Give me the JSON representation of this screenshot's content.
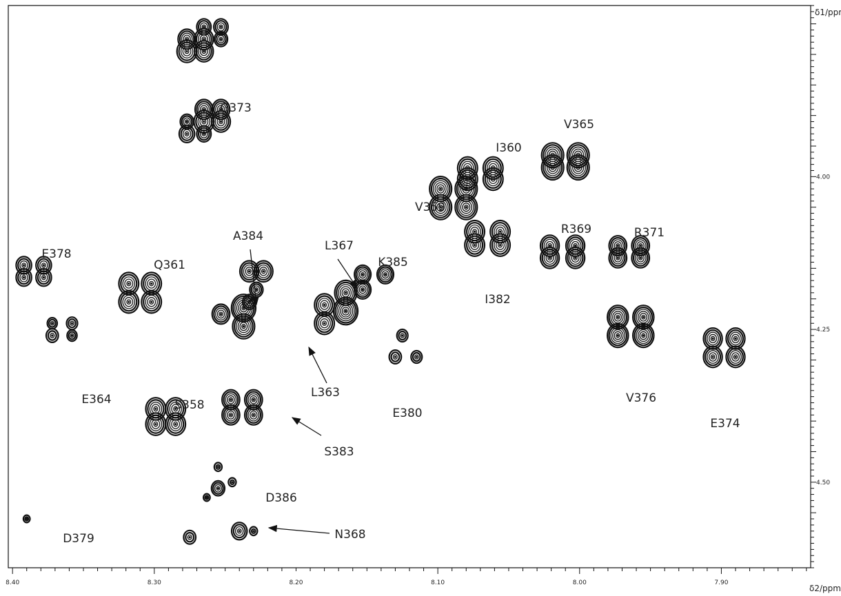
{
  "chart_data": {
    "type": "2D NMR contour spectrum",
    "x_axis": {
      "unit_label": "δ2/ppm",
      "tick_labels": [
        "8.40",
        "8.30",
        "8.20",
        "8.10",
        "8.00",
        "7.90"
      ],
      "tick_values": [
        8.4,
        8.3,
        8.2,
        8.1,
        8.0,
        7.9
      ],
      "range": [
        8.403,
        7.837
      ],
      "reversed": true
    },
    "y_axis": {
      "unit_label": "δ1/ppm",
      "tick_labels": [
        "4.00",
        "4.25",
        "4.50"
      ],
      "tick_values": [
        4.0,
        4.25,
        4.5
      ],
      "range": [
        3.72,
        4.64
      ],
      "position": "right",
      "reversed": true
    },
    "peaks": [
      {
        "label": "G373",
        "x": 8.265,
        "y": 3.905,
        "components": [
          {
            "dx": -0.012,
            "dy": -0.015,
            "s": 0.8
          },
          {
            "dx": 0.0,
            "dy": -0.015,
            "s": 0.8
          },
          {
            "dx": -0.012,
            "dy": 0.005,
            "s": 0.85
          },
          {
            "dx": 0.0,
            "dy": 0.005,
            "s": 0.9
          },
          {
            "dx": 0.012,
            "dy": 0.005,
            "s": 0.6
          },
          {
            "dx": 0.0,
            "dy": 0.025,
            "s": 0.65
          },
          {
            "dx": 0.012,
            "dy": 0.025,
            "s": 0.7
          }
        ]
      },
      {
        "label": "",
        "x": 8.265,
        "y": 3.78,
        "components": [
          {
            "dx": -0.012,
            "dy": -0.025,
            "s": 0.65
          },
          {
            "dx": 0.0,
            "dy": -0.025,
            "s": 0.65
          },
          {
            "dx": -0.012,
            "dy": -0.005,
            "s": 0.6
          },
          {
            "dx": 0.0,
            "dy": -0.005,
            "s": 0.85
          },
          {
            "dx": 0.012,
            "dy": -0.005,
            "s": 0.8
          },
          {
            "dx": 0.0,
            "dy": 0.015,
            "s": 0.85
          },
          {
            "dx": 0.012,
            "dy": 0.015,
            "s": 0.9
          }
        ]
      },
      {
        "label": "V365",
        "x": 8.01,
        "y": 3.975,
        "components": [
          {
            "dx": -0.009,
            "dy": -0.01,
            "s": 1.0
          },
          {
            "dx": 0.009,
            "dy": -0.01,
            "s": 1.0
          },
          {
            "dx": -0.009,
            "dy": 0.01,
            "s": 1.0
          },
          {
            "dx": 0.009,
            "dy": 0.01,
            "s": 1.0
          }
        ]
      },
      {
        "label": "I360",
        "x": 8.07,
        "y": 3.99,
        "components": [
          {
            "dx": -0.009,
            "dy": -0.004,
            "s": 0.9
          },
          {
            "dx": 0.009,
            "dy": -0.004,
            "s": 0.9
          },
          {
            "dx": -0.009,
            "dy": 0.014,
            "s": 0.9
          },
          {
            "dx": 0.009,
            "dy": 0.014,
            "s": 0.9
          }
        ]
      },
      {
        "label": "V359",
        "x": 8.09,
        "y": 4.05,
        "components": [
          {
            "dx": -0.01,
            "dy": -0.03,
            "s": 1.0
          },
          {
            "dx": 0.008,
            "dy": -0.03,
            "s": 1.0
          },
          {
            "dx": -0.01,
            "dy": 0.0,
            "s": 1.0
          },
          {
            "dx": 0.008,
            "dy": 0.0,
            "s": 1.0
          }
        ]
      },
      {
        "label": "I382",
        "x": 8.065,
        "y": 4.11,
        "components": [
          {
            "dx": -0.009,
            "dy": -0.02,
            "s": 0.9
          },
          {
            "dx": 0.009,
            "dy": -0.02,
            "s": 0.9
          },
          {
            "dx": -0.009,
            "dy": 0.002,
            "s": 0.9
          },
          {
            "dx": 0.009,
            "dy": 0.002,
            "s": 0.9
          }
        ]
      },
      {
        "label": "R369",
        "x": 8.012,
        "y": 4.133,
        "components": [
          {
            "dx": -0.009,
            "dy": -0.02,
            "s": 0.85
          },
          {
            "dx": 0.009,
            "dy": -0.02,
            "s": 0.85
          },
          {
            "dx": -0.009,
            "dy": 0.0,
            "s": 0.85
          },
          {
            "dx": 0.009,
            "dy": 0.0,
            "s": 0.85
          }
        ]
      },
      {
        "label": "R371",
        "x": 7.965,
        "y": 4.133,
        "components": [
          {
            "dx": -0.008,
            "dy": -0.02,
            "s": 0.8
          },
          {
            "dx": 0.008,
            "dy": -0.02,
            "s": 0.8
          },
          {
            "dx": -0.008,
            "dy": 0.0,
            "s": 0.8
          },
          {
            "dx": 0.008,
            "dy": 0.0,
            "s": 0.8
          }
        ]
      },
      {
        "label": "V376",
        "x": 7.964,
        "y": 4.25,
        "components": [
          {
            "dx": -0.009,
            "dy": -0.02,
            "s": 0.95
          },
          {
            "dx": 0.009,
            "dy": -0.02,
            "s": 0.95
          },
          {
            "dx": -0.009,
            "dy": 0.01,
            "s": 0.95
          },
          {
            "dx": 0.009,
            "dy": 0.01,
            "s": 0.95
          }
        ]
      },
      {
        "label": "E374",
        "x": 7.898,
        "y": 4.285,
        "components": [
          {
            "dx": -0.008,
            "dy": -0.02,
            "s": 0.85
          },
          {
            "dx": 0.008,
            "dy": -0.02,
            "s": 0.85
          },
          {
            "dx": -0.008,
            "dy": 0.01,
            "s": 0.85
          },
          {
            "dx": 0.008,
            "dy": 0.01,
            "s": 0.85
          }
        ]
      },
      {
        "label": "E378",
        "x": 8.385,
        "y": 4.165,
        "components": [
          {
            "dx": -0.007,
            "dy": -0.02,
            "s": 0.7
          },
          {
            "dx": 0.007,
            "dy": -0.02,
            "s": 0.7
          },
          {
            "dx": -0.007,
            "dy": 0.0,
            "s": 0.7
          },
          {
            "dx": 0.007,
            "dy": 0.0,
            "s": 0.7
          }
        ]
      },
      {
        "label": "E364",
        "x": 8.365,
        "y": 4.25,
        "components": [
          {
            "dx": -0.007,
            "dy": -0.01,
            "s": 0.5
          },
          {
            "dx": 0.007,
            "dy": -0.01,
            "s": 0.45
          },
          {
            "dx": -0.007,
            "dy": 0.01,
            "s": 0.45
          },
          {
            "dx": 0.007,
            "dy": 0.01,
            "s": 0.55
          }
        ]
      },
      {
        "label": "Q361",
        "x": 8.31,
        "y": 4.195,
        "components": [
          {
            "dx": -0.008,
            "dy": -0.02,
            "s": 0.9
          },
          {
            "dx": 0.008,
            "dy": -0.02,
            "s": 0.9
          },
          {
            "dx": -0.008,
            "dy": 0.01,
            "s": 0.9
          },
          {
            "dx": 0.008,
            "dy": 0.01,
            "s": 0.9
          }
        ]
      },
      {
        "label": "A384",
        "x": 8.245,
        "y": 4.225,
        "components": [
          {
            "dx": -0.008,
            "dy": -0.01,
            "s": 1.1
          },
          {
            "dx": -0.008,
            "dy": 0.02,
            "s": 1.0
          },
          {
            "dx": 0.008,
            "dy": 0.0,
            "s": 0.8
          }
        ]
      },
      {
        "label": "L363",
        "x": 8.228,
        "y": 4.205,
        "components": [
          {
            "dx": -0.005,
            "dy": -0.05,
            "s": 0.85
          },
          {
            "dx": 0.005,
            "dy": -0.05,
            "s": 0.85
          },
          {
            "dx": 0.0,
            "dy": -0.02,
            "s": 0.6
          },
          {
            "dx": 0.005,
            "dy": 0.0,
            "s": 0.6
          }
        ]
      },
      {
        "label": "L367",
        "x": 8.17,
        "y": 4.22,
        "components": [
          {
            "dx": -0.005,
            "dy": -0.03,
            "s": 1.0
          },
          {
            "dx": -0.005,
            "dy": 0.0,
            "s": 1.1
          },
          {
            "dx": 0.01,
            "dy": -0.01,
            "s": 0.9
          },
          {
            "dx": 0.01,
            "dy": 0.02,
            "s": 0.9
          }
        ]
      },
      {
        "label": "K385",
        "x": 8.145,
        "y": 4.17,
        "components": [
          {
            "dx": -0.008,
            "dy": -0.01,
            "s": 0.75
          },
          {
            "dx": 0.008,
            "dy": -0.01,
            "s": 0.75
          },
          {
            "dx": 0.008,
            "dy": 0.015,
            "s": 0.75
          }
        ]
      },
      {
        "label": "E380",
        "x": 8.13,
        "y": 4.28,
        "components": [
          {
            "dx": -0.005,
            "dy": -0.02,
            "s": 0.5
          },
          {
            "dx": -0.015,
            "dy": 0.015,
            "s": 0.5
          },
          {
            "dx": 0.0,
            "dy": 0.015,
            "s": 0.55
          }
        ]
      },
      {
        "label": "S358",
        "x": 8.292,
        "y": 4.4,
        "components": [
          {
            "dx": -0.007,
            "dy": -0.02,
            "s": 0.9
          },
          {
            "dx": 0.007,
            "dy": -0.02,
            "s": 0.9
          },
          {
            "dx": -0.007,
            "dy": 0.005,
            "s": 0.9
          },
          {
            "dx": 0.007,
            "dy": 0.005,
            "s": 0.9
          }
        ]
      },
      {
        "label": "S383",
        "x": 8.238,
        "y": 4.375,
        "components": [
          {
            "dx": -0.008,
            "dy": -0.01,
            "s": 0.8
          },
          {
            "dx": 0.008,
            "dy": -0.01,
            "s": 0.8
          },
          {
            "dx": -0.008,
            "dy": 0.015,
            "s": 0.8
          },
          {
            "dx": 0.008,
            "dy": 0.015,
            "s": 0.8
          }
        ]
      },
      {
        "label": "D386",
        "x": 8.255,
        "y": 4.5,
        "components": [
          {
            "dx": 0.0,
            "dy": -0.025,
            "s": 0.35
          },
          {
            "dx": -0.01,
            "dy": 0.0,
            "s": 0.35
          },
          {
            "dx": 0.0,
            "dy": 0.01,
            "s": 0.6
          },
          {
            "dx": 0.008,
            "dy": 0.025,
            "s": 0.3
          }
        ]
      },
      {
        "label": "N368",
        "x": 8.24,
        "y": 4.58,
        "components": [
          {
            "dx": -0.01,
            "dy": 0.0,
            "s": 0.35
          },
          {
            "dx": 0.0,
            "dy": 0.0,
            "s": 0.7
          },
          {
            "dx": 0.035,
            "dy": 0.01,
            "s": 0.55
          }
        ]
      },
      {
        "label": "D379",
        "x": 8.39,
        "y": 4.56,
        "components": [
          {
            "dx": 0.0,
            "dy": 0.0,
            "s": 0.3
          }
        ]
      }
    ],
    "arrow_annotations": [
      "A384",
      "L367",
      "L363",
      "S383",
      "N368"
    ]
  }
}
